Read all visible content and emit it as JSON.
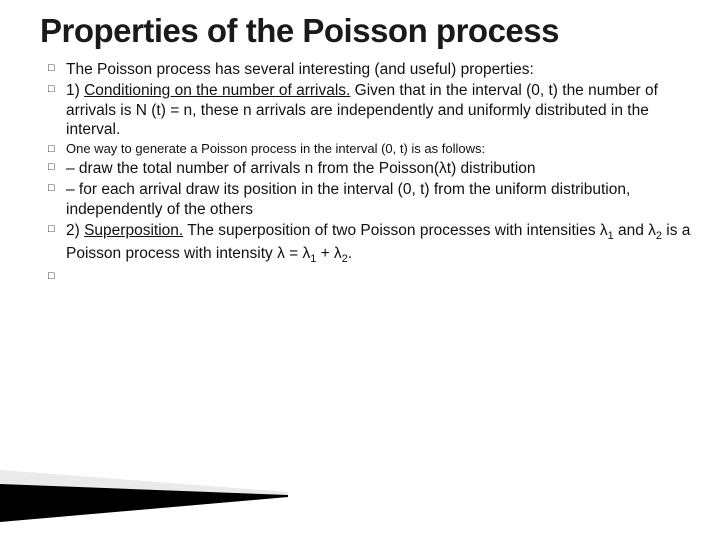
{
  "title": "Properties of the Poisson process",
  "items": [
    {
      "size": "body",
      "html": "The Poisson process has several interesting (and useful) properties:"
    },
    {
      "size": "body",
      "html": "1) <span class=\"underline\">Conditioning on the number of arrivals.</span> Given that in the interval (0, t) the number of arrivals is N (t) = n, these n arrivals are independently and uniformly distributed in the interval."
    },
    {
      "size": "small",
      "html": "One way to generate a Poisson process in the interval (0, t) is as follows:"
    },
    {
      "size": "body",
      "html": "– draw the total number of arrivals n from the Poisson(λt) distribution"
    },
    {
      "size": "body",
      "html": "– for each arrival draw its position in the interval (0, t) from the uniform distribution, independently of the others"
    },
    {
      "size": "body",
      "html": "2) <span class=\"underline\">Superposition.</span> The superposition of two Poisson processes with intensities λ<span class=\"sub\">1</span> and λ<span class=\"sub\">2</span> is a Poisson process with intensity λ = λ<span class=\"sub\">1</span> + λ<span class=\"sub\">2</span>."
    },
    {
      "size": "body",
      "html": ""
    }
  ],
  "accent_colors": {
    "highlight": "#e8e8e8",
    "dark": "#000000"
  }
}
